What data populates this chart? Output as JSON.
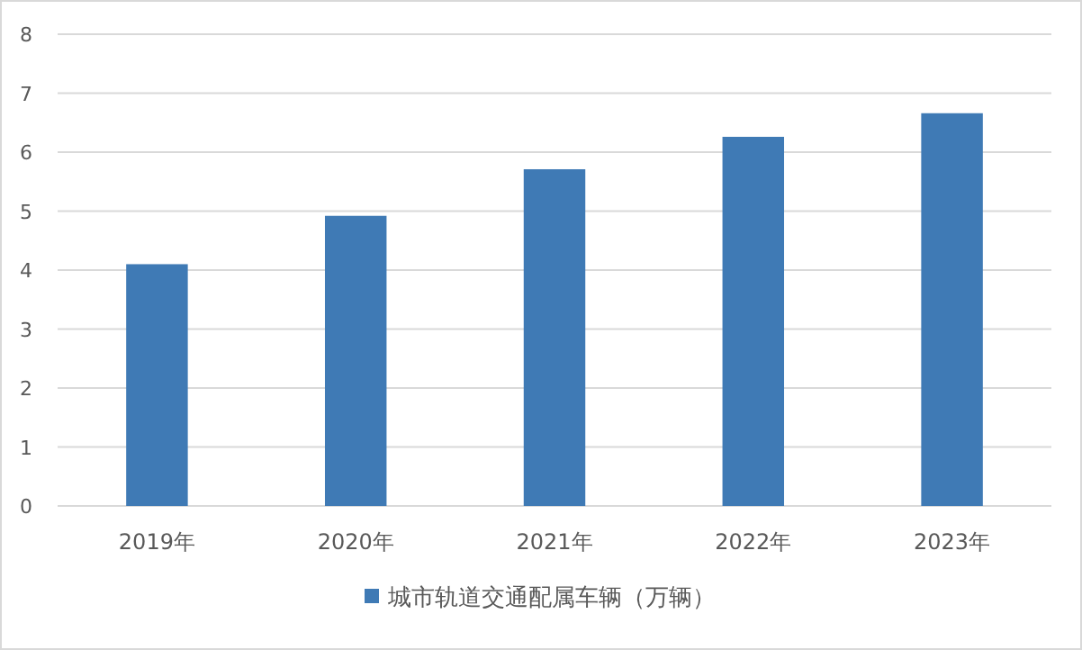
{
  "chart_data": {
    "type": "bar",
    "categories": [
      "2019年",
      "2020年",
      "2021年",
      "2022年",
      "2023年"
    ],
    "series": [
      {
        "name": "城市轨道交通配属车辆（万辆）",
        "color": "#3f7ab5",
        "values": [
          4.1,
          4.92,
          5.71,
          6.26,
          6.66
        ]
      }
    ],
    "ylim": [
      0,
      8
    ],
    "yticks": [
      0,
      1,
      2,
      3,
      4,
      5,
      6,
      7,
      8
    ],
    "grid": "y",
    "legend": "bottom"
  }
}
